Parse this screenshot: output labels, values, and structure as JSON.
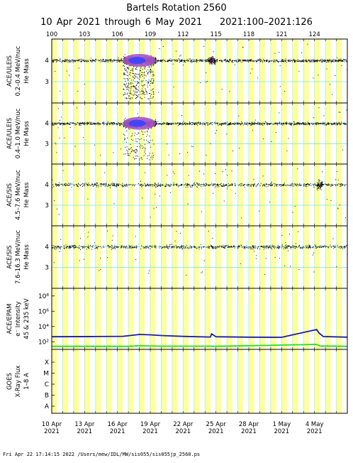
{
  "page": {
    "title": "Bartels Rotation 2560",
    "subtitle": "10 Apr 2021 through 6 May 2021",
    "doy_range": "2021:100–2021:126",
    "footer": "Fri Apr 22 17:14:15 2022   /Users/mew/IDL/MW/sis055/sis055jp_2560.ps"
  },
  "colors": {
    "stripe_yellow": "#ffff9c",
    "stripe_cyan": "#a8eeee",
    "gridline_cyan": "#7fe0e0",
    "epam_line_blue": "#1a1aa8",
    "epam_line_green": "#22dd22",
    "blob_purple": "#aa55cc",
    "blob_blue": "#3344ff"
  },
  "chart_data": [
    {
      "type": "scatter",
      "panel": "ACE/ULEIS He 0.2-0.4",
      "ylabel_lines": [
        "ACE/ULEIS",
        "0.2–0.4 MeV/nuc",
        "He Mass"
      ],
      "yticks": [
        "4",
        "3"
      ],
      "ylim": [
        2,
        5
      ],
      "x_range_doy": [
        100,
        127
      ],
      "note": "dense He-4 band near mass 4; strong enhancement 106.5–109.5, smaller burst near 114.5"
    },
    {
      "type": "scatter",
      "panel": "ACE/ULEIS He 0.4-1.0",
      "ylabel_lines": [
        "ACE/ULEIS",
        "0.4–1.0 MeV/nuc",
        "He Mass"
      ],
      "yticks": [
        "4",
        "3"
      ],
      "ylim": [
        2,
        5
      ],
      "x_range_doy": [
        100,
        127
      ],
      "note": "He-4 band near mass 4; enhancement 106.5–109.5"
    },
    {
      "type": "scatter",
      "panel": "ACE/SIS He 4.5-7.6",
      "ylabel_lines": [
        "ACE/SIS",
        "4.5–7.6 MeV/nuc",
        "He Mass"
      ],
      "yticks": [
        "4",
        "3"
      ],
      "ylim": [
        2,
        5
      ],
      "x_range_doy": [
        100,
        127
      ],
      "note": "sparse He-4 band near mass 4 across the rotation"
    },
    {
      "type": "scatter",
      "panel": "ACE/SIS He 7.6-16.3",
      "ylabel_lines": [
        "ACE/SIS",
        "7.6–16.3 MeV/nuc",
        "He Mass"
      ],
      "yticks": [
        "4",
        "3"
      ],
      "ylim": [
        2,
        5
      ],
      "x_range_doy": [
        100,
        127
      ],
      "note": "dense He-4 band near mass 4 across the rotation"
    },
    {
      "type": "line",
      "panel": "ACE/EPAM electrons",
      "ylabel_lines": [
        "ACE/EPAM",
        "e⁻ Intensity",
        "45 & 235 keV"
      ],
      "yticks": [
        "10⁸",
        "10⁶",
        "10⁴",
        "10²"
      ],
      "yscale": "log",
      "ylim": [
        10,
        1000000000.0
      ],
      "series": [
        {
          "name": "45 keV",
          "color": "#1a1aa8",
          "x": [
            100,
            104,
            106.5,
            108,
            109,
            110,
            112,
            114.5,
            114.6,
            115,
            118,
            121,
            124.2,
            124.4,
            124.8,
            127
          ],
          "y": [
            450,
            480,
            520,
            900,
            800,
            650,
            500,
            420,
            1100,
            450,
            400,
            380,
            4000,
            1500,
            480,
            400
          ]
        },
        {
          "name": "235 keV",
          "color": "#22dd22",
          "x": [
            100,
            107,
            108,
            110,
            114.5,
            115,
            124.2,
            124.5,
            127
          ],
          "y": [
            25,
            25,
            30,
            26,
            26,
            25,
            45,
            28,
            25
          ]
        }
      ]
    },
    {
      "type": "line",
      "panel": "GOES X-Ray Flux",
      "ylabel_lines": [
        "GOES",
        "X-Ray Flux",
        "1–8 A"
      ],
      "yticks": [
        "X",
        "M",
        "C",
        "B",
        "A"
      ],
      "note": "no data plotted"
    }
  ],
  "x_axis": {
    "top_doy_ticks": [
      "100",
      "103",
      "106",
      "109",
      "112",
      "115",
      "118",
      "121",
      "124"
    ],
    "bottom_dates": [
      {
        "day": "10 Apr",
        "year": "2021"
      },
      {
        "day": "13 Apr",
        "year": "2021"
      },
      {
        "day": "16 Apr",
        "year": "2021"
      },
      {
        "day": "19 Apr",
        "year": "2021"
      },
      {
        "day": "22 Apr",
        "year": "2021"
      },
      {
        "day": "25 Apr",
        "year": "2021"
      },
      {
        "day": "28 Apr",
        "year": "2021"
      },
      {
        "day": "1 May",
        "year": "2021"
      },
      {
        "day": "4 May",
        "year": "2021"
      }
    ]
  }
}
